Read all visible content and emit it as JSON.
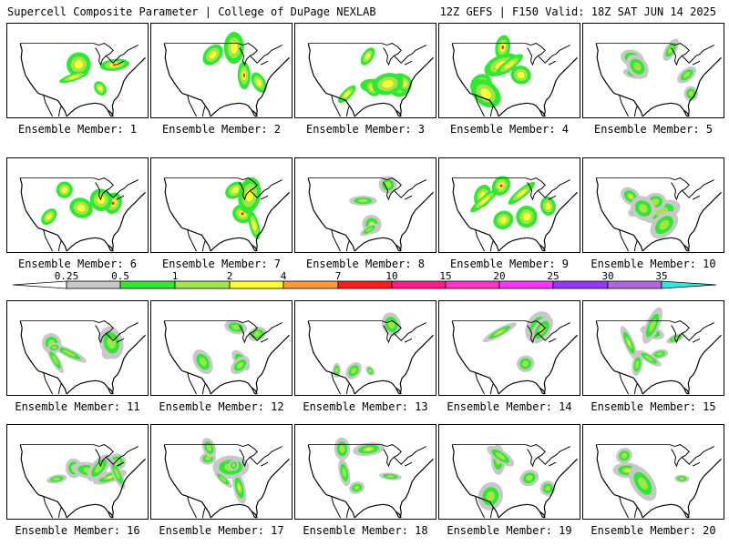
{
  "header": {
    "title": "Supercell Composite Parameter | College of DuPage NEXLAB",
    "run_info": "12Z GEFS | F150 Valid: 18Z SAT JUN 14 2025"
  },
  "colorbar": {
    "levels": [
      "0.25",
      "0.5",
      "1",
      "2",
      "4",
      "7",
      "10",
      "15",
      "20",
      "25",
      "30",
      "35"
    ],
    "colors": [
      "#c8c8c8",
      "#33e633",
      "#a0e64a",
      "#ffff33",
      "#ff9933",
      "#ff1a1a",
      "#ff1a8c",
      "#ff33cc",
      "#ff33ff",
      "#9933ff",
      "#b266dd",
      "#33e6e6"
    ]
  },
  "members": [
    {
      "label": "Ensemble Member: 1",
      "color_bins": [
        1,
        2,
        3,
        5
      ]
    },
    {
      "label": "Ensemble Member: 2",
      "color_bins": [
        1,
        2,
        3,
        5
      ]
    },
    {
      "label": "Ensemble Member: 3",
      "color_bins": [
        1,
        2,
        3,
        5
      ]
    },
    {
      "label": "Ensemble Member: 4",
      "color_bins": [
        1,
        2,
        3,
        5
      ]
    },
    {
      "label": "Ensemble Member: 5",
      "color_bins": [
        0,
        1,
        2,
        3
      ]
    },
    {
      "label": "Ensemble Member: 6",
      "color_bins": [
        1,
        2,
        3,
        5
      ]
    },
    {
      "label": "Ensemble Member: 7",
      "color_bins": [
        1,
        2,
        3,
        5
      ]
    },
    {
      "label": "Ensemble Member: 8",
      "color_bins": [
        0,
        1,
        2,
        3
      ]
    },
    {
      "label": "Ensemble Member: 9",
      "color_bins": [
        1,
        2,
        3,
        5
      ]
    },
    {
      "label": "Ensemble Member: 10",
      "color_bins": [
        0,
        1,
        2,
        3
      ]
    },
    {
      "label": "Ensemble Member: 11",
      "color_bins": [
        0,
        1,
        2,
        3
      ]
    },
    {
      "label": "Ensemble Member: 12",
      "color_bins": [
        0,
        1,
        2,
        3
      ]
    },
    {
      "label": "Ensemble Member: 13",
      "color_bins": [
        0,
        1,
        2,
        3
      ]
    },
    {
      "label": "Ensemble Member: 14",
      "color_bins": [
        0,
        1,
        2,
        3
      ]
    },
    {
      "label": "Ensemble Member: 15",
      "color_bins": [
        0,
        1,
        2,
        3
      ]
    },
    {
      "label": "Ensemble Member: 16",
      "color_bins": [
        0,
        1,
        2,
        3
      ]
    },
    {
      "label": "Ensemble Member: 17",
      "color_bins": [
        0,
        1,
        2,
        3
      ]
    },
    {
      "label": "Ensemble Member: 18",
      "color_bins": [
        0,
        1,
        2,
        3
      ]
    },
    {
      "label": "Ensemble Member: 19",
      "color_bins": [
        0,
        1,
        2,
        3
      ]
    },
    {
      "label": "Ensemble Member: 20",
      "color_bins": [
        0,
        1,
        2,
        3
      ]
    }
  ]
}
